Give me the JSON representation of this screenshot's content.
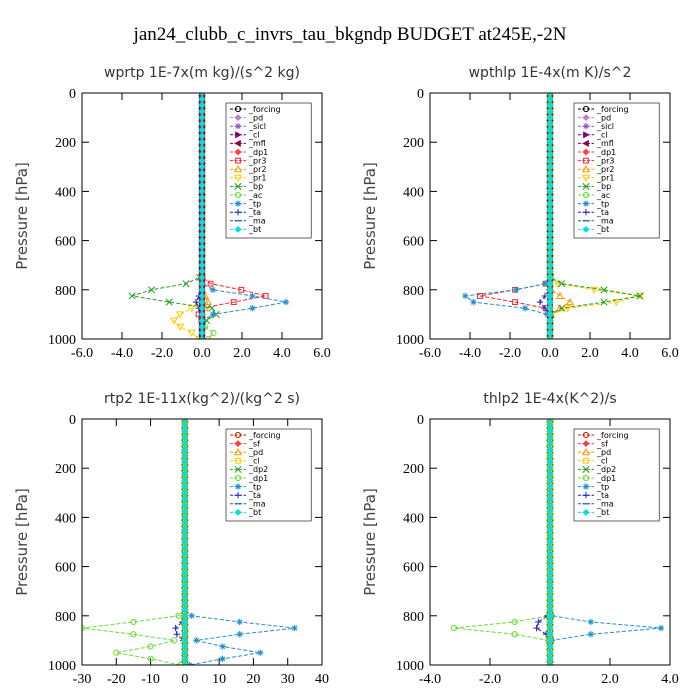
{
  "figure_title": "jan24_clubb_c_invrs_tau_bkgndp  BUDGET at245E,-2N",
  "chart_data": [
    {
      "type": "line",
      "title": "wprtp  1E-7x(m kg)/(s^2 kg)",
      "ylabel": "Pressure [hPa]",
      "xlim": [
        -6,
        6
      ],
      "ylim": [
        1000,
        0
      ],
      "xticks": [
        "-6.0",
        "-4.0",
        "-2.0",
        "0.0",
        "2.0",
        "4.0",
        "6.0"
      ],
      "yticks": [
        "0",
        "200",
        "400",
        "600",
        "800",
        "1000"
      ],
      "legend_position": "top-right",
      "levels": [
        0,
        25,
        50,
        75,
        100,
        125,
        150,
        175,
        200,
        225,
        250,
        275,
        300,
        325,
        350,
        375,
        400,
        425,
        450,
        475,
        500,
        525,
        550,
        575,
        600,
        625,
        650,
        675,
        700,
        725,
        750,
        775,
        800,
        825,
        850,
        875,
        900,
        925,
        950,
        975,
        1000
      ],
      "series": [
        {
          "name": "_forcing",
          "color": "#000000",
          "marker": "circle",
          "profile": {
            "kind": "zero"
          }
        },
        {
          "name": "_pd",
          "color": "#c080c0",
          "marker": "diamond",
          "profile": {
            "kind": "zero"
          }
        },
        {
          "name": "_sicl",
          "color": "#8060c0",
          "marker": "star",
          "profile": {
            "kind": "zero"
          }
        },
        {
          "name": "_cl",
          "color": "#800080",
          "marker": "tri-right",
          "profile": {
            "kind": "zero"
          }
        },
        {
          "name": "_mfl",
          "color": "#900040",
          "marker": "tri-left",
          "profile": {
            "kind": "zero"
          }
        },
        {
          "name": "_dp1",
          "color": "#ff4040",
          "marker": "diamond",
          "profile": {
            "kind": "zero"
          }
        },
        {
          "name": "_pr3",
          "color": "#ff2020",
          "marker": "square",
          "profile": {
            "kind": "pulse",
            "center": 825,
            "width": 35,
            "amp": 3.3,
            "amp2": -0.5
          }
        },
        {
          "name": "_pr2",
          "color": "#ff9900",
          "marker": "tri-up",
          "profile": {
            "kind": "pulse",
            "center": 850,
            "width": 30,
            "amp": 0.3
          }
        },
        {
          "name": "_pr1",
          "color": "#ffcc00",
          "marker": "tri-down",
          "profile": {
            "kind": "pulse",
            "center": 925,
            "width": 50,
            "amp": -1.4
          }
        },
        {
          "name": "_bp",
          "color": "#20a020",
          "marker": "x",
          "profile": {
            "kind": "pulse",
            "center": 825,
            "width": 40,
            "amp": -3.8,
            "amp2": 1.3
          }
        },
        {
          "name": "_ac",
          "color": "#66dd33",
          "marker": "circle",
          "profile": {
            "kind": "pulse",
            "center": 980,
            "width": 25,
            "amp": 0.6
          }
        },
        {
          "name": "_tp",
          "color": "#2090d0",
          "marker": "star",
          "profile": {
            "kind": "pulse",
            "center": 850,
            "width": 35,
            "amp": 4.2
          }
        },
        {
          "name": "_ta",
          "color": "#2020c0",
          "marker": "plus",
          "profile": {
            "kind": "pulse",
            "center": 850,
            "width": 30,
            "amp": -0.3
          }
        },
        {
          "name": "_ma",
          "color": "#2060a0",
          "marker": "dash",
          "profile": {
            "kind": "zero"
          }
        },
        {
          "name": "_bt",
          "color": "#00e0e0",
          "marker": "diamond",
          "profile": {
            "kind": "zero"
          }
        }
      ]
    },
    {
      "type": "line",
      "title": "wpthlp  1E-4x(m K)/s^2",
      "ylabel": "Pressure [hPa]",
      "xlim": [
        -6,
        6
      ],
      "ylim": [
        1000,
        0
      ],
      "xticks": [
        "-6.0",
        "-4.0",
        "-2.0",
        "0.0",
        "2.0",
        "4.0",
        "6.0"
      ],
      "yticks": [
        "0",
        "200",
        "400",
        "600",
        "800",
        "1000"
      ],
      "legend_position": "top-right",
      "levels": [
        0,
        25,
        50,
        75,
        100,
        125,
        150,
        175,
        200,
        225,
        250,
        275,
        300,
        325,
        350,
        375,
        400,
        425,
        450,
        475,
        500,
        525,
        550,
        575,
        600,
        625,
        650,
        675,
        700,
        725,
        750,
        775,
        800,
        825,
        850,
        875,
        900,
        925,
        950,
        975,
        1000
      ],
      "series": [
        {
          "name": "_forcing",
          "color": "#000000",
          "marker": "circle",
          "profile": {
            "kind": "zero"
          }
        },
        {
          "name": "_pd",
          "color": "#c080c0",
          "marker": "diamond",
          "profile": {
            "kind": "zero"
          }
        },
        {
          "name": "_sicl",
          "color": "#8060c0",
          "marker": "star",
          "profile": {
            "kind": "zero"
          }
        },
        {
          "name": "_cl",
          "color": "#800080",
          "marker": "tri-right",
          "profile": {
            "kind": "zero"
          }
        },
        {
          "name": "_mfl",
          "color": "#900040",
          "marker": "tri-left",
          "profile": {
            "kind": "zero"
          }
        },
        {
          "name": "_dp1",
          "color": "#ff4040",
          "marker": "diamond",
          "profile": {
            "kind": "zero"
          }
        },
        {
          "name": "_pr3",
          "color": "#ff2020",
          "marker": "square",
          "profile": {
            "kind": "pulse",
            "center": 825,
            "width": 30,
            "amp": -3.5
          }
        },
        {
          "name": "_pr2",
          "color": "#ff9900",
          "marker": "tri-up",
          "profile": {
            "kind": "pulse",
            "center": 850,
            "width": 30,
            "amp": 1.0
          }
        },
        {
          "name": "_pr1",
          "color": "#ffcc00",
          "marker": "tri-down",
          "profile": {
            "kind": "pulse",
            "center": 830,
            "width": 35,
            "amp": 4.6
          }
        },
        {
          "name": "_bp",
          "color": "#20a020",
          "marker": "x",
          "profile": {
            "kind": "pulse",
            "center": 825,
            "width": 35,
            "amp": 4.5
          }
        },
        {
          "name": "_ac",
          "color": "#66dd33",
          "marker": "circle",
          "profile": {
            "kind": "zero"
          }
        },
        {
          "name": "_tp",
          "color": "#2090d0",
          "marker": "star",
          "profile": {
            "kind": "pulse",
            "center": 835,
            "width": 35,
            "amp": -4.6
          }
        },
        {
          "name": "_ta",
          "color": "#2020c0",
          "marker": "plus",
          "profile": {
            "kind": "pulse",
            "center": 850,
            "width": 30,
            "amp": -0.5
          }
        },
        {
          "name": "_ma",
          "color": "#2060a0",
          "marker": "dash",
          "profile": {
            "kind": "zero"
          }
        },
        {
          "name": "_bt",
          "color": "#00e0e0",
          "marker": "diamond",
          "profile": {
            "kind": "zero"
          }
        }
      ]
    },
    {
      "type": "line",
      "title": "rtp2  1E-11x(kg^2)/(kg^2 s)",
      "ylabel": "Pressure [hPa]",
      "xlim": [
        -30,
        40
      ],
      "ylim": [
        1000,
        0
      ],
      "xticks": [
        "-30",
        "-20",
        "-10",
        "0",
        "10",
        "20",
        "30",
        "40"
      ],
      "yticks": [
        "0",
        "200",
        "400",
        "600",
        "800",
        "1000"
      ],
      "legend_position": "top-right",
      "levels": [
        0,
        25,
        50,
        75,
        100,
        125,
        150,
        175,
        200,
        225,
        250,
        275,
        300,
        325,
        350,
        375,
        400,
        425,
        450,
        475,
        500,
        525,
        550,
        575,
        600,
        625,
        650,
        675,
        700,
        725,
        750,
        775,
        800,
        825,
        850,
        875,
        900,
        925,
        950,
        975,
        1000
      ],
      "series": [
        {
          "name": "_forcing",
          "color": "#cc2200",
          "marker": "circle",
          "profile": {
            "kind": "zero"
          }
        },
        {
          "name": "_sf",
          "color": "#ff4040",
          "marker": "diamond",
          "profile": {
            "kind": "zero"
          }
        },
        {
          "name": "_pd",
          "color": "#ff9900",
          "marker": "tri-up",
          "profile": {
            "kind": "zero"
          }
        },
        {
          "name": "_cl",
          "color": "#ffcc00",
          "marker": "square",
          "profile": {
            "kind": "zero"
          }
        },
        {
          "name": "_dp2",
          "color": "#20a020",
          "marker": "x",
          "profile": {
            "kind": "zero"
          }
        },
        {
          "name": "_dp1",
          "color": "#66dd33",
          "marker": "circle",
          "profile": {
            "kind": "pulse",
            "center": 850,
            "width": 30,
            "amp": -30,
            "center2": 950,
            "width2": 30,
            "amp2": -20
          }
        },
        {
          "name": "_tp",
          "color": "#2090d0",
          "marker": "star",
          "profile": {
            "kind": "pulse",
            "center": 850,
            "width": 30,
            "amp": 32,
            "center2": 950,
            "width2": 30,
            "amp2": 22
          }
        },
        {
          "name": "_ta",
          "color": "#2020c0",
          "marker": "plus",
          "profile": {
            "kind": "pulse",
            "center": 860,
            "width": 30,
            "amp": -3
          }
        },
        {
          "name": "_ma",
          "color": "#2060a0",
          "marker": "dash",
          "profile": {
            "kind": "zero"
          }
        },
        {
          "name": "_bt",
          "color": "#00e0e0",
          "marker": "diamond",
          "profile": {
            "kind": "zero"
          }
        }
      ]
    },
    {
      "type": "line",
      "title": "thlp2  1E-4x(K^2)/s",
      "ylabel": "Pressure [hPa]",
      "xlim": [
        -4,
        4
      ],
      "ylim": [
        1000,
        0
      ],
      "xticks": [
        "-4.0",
        "-2.0",
        "0.0",
        "2.0",
        "4.0"
      ],
      "yticks": [
        "0",
        "200",
        "400",
        "600",
        "800",
        "1000"
      ],
      "legend_position": "top-right",
      "levels": [
        0,
        25,
        50,
        75,
        100,
        125,
        150,
        175,
        200,
        225,
        250,
        275,
        300,
        325,
        350,
        375,
        400,
        425,
        450,
        475,
        500,
        525,
        550,
        575,
        600,
        625,
        650,
        675,
        700,
        725,
        750,
        775,
        800,
        825,
        850,
        875,
        900,
        925,
        950,
        975,
        1000
      ],
      "series": [
        {
          "name": "_forcing",
          "color": "#cc2200",
          "marker": "circle",
          "profile": {
            "kind": "zero"
          }
        },
        {
          "name": "_sf",
          "color": "#ff4040",
          "marker": "diamond",
          "profile": {
            "kind": "zero"
          }
        },
        {
          "name": "_pd",
          "color": "#ff9900",
          "marker": "tri-up",
          "profile": {
            "kind": "zero"
          }
        },
        {
          "name": "_cl",
          "color": "#ffcc00",
          "marker": "square",
          "profile": {
            "kind": "zero"
          }
        },
        {
          "name": "_dp2",
          "color": "#20a020",
          "marker": "x",
          "profile": {
            "kind": "zero"
          }
        },
        {
          "name": "_dp1",
          "color": "#66dd33",
          "marker": "circle",
          "profile": {
            "kind": "pulse",
            "center": 850,
            "width": 25,
            "amp": -3.2
          }
        },
        {
          "name": "_tp",
          "color": "#2090d0",
          "marker": "star",
          "profile": {
            "kind": "pulse",
            "center": 850,
            "width": 25,
            "amp": 3.7
          }
        },
        {
          "name": "_ta",
          "color": "#2020c0",
          "marker": "plus",
          "profile": {
            "kind": "pulse",
            "center": 840,
            "width": 30,
            "amp": -0.5
          }
        },
        {
          "name": "_ma",
          "color": "#2060a0",
          "marker": "dash",
          "profile": {
            "kind": "zero"
          }
        },
        {
          "name": "_bt",
          "color": "#00e0e0",
          "marker": "diamond",
          "profile": {
            "kind": "zero"
          }
        }
      ]
    }
  ]
}
